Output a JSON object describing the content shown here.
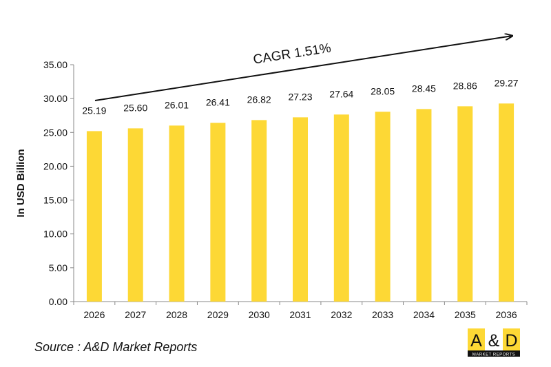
{
  "chart_data": {
    "type": "bar",
    "title": "",
    "xlabel": "",
    "ylabel": "In USD Billion",
    "categories": [
      "2026",
      "2027",
      "2028",
      "2029",
      "2030",
      "2031",
      "2032",
      "2033",
      "2034",
      "2035",
      "2036"
    ],
    "values": [
      25.19,
      25.6,
      26.01,
      26.41,
      26.82,
      27.23,
      27.64,
      28.05,
      28.45,
      28.86,
      29.27
    ],
    "data_labels": [
      "25.19",
      "25.60",
      "26.01",
      "26.41",
      "26.82",
      "27.23",
      "27.64",
      "28.05",
      "28.45",
      "28.86",
      "29.27"
    ],
    "ylim": [
      0,
      35
    ],
    "yticks": [
      "0.00",
      "5.00",
      "10.00",
      "15.00",
      "20.00",
      "25.00",
      "30.00",
      "35.00"
    ],
    "grid": false,
    "bar_color": "#FDD835",
    "annotation": "CAGR 1.51%"
  },
  "source": "Source : A&D Market Reports",
  "logo": {
    "text": "A&D",
    "subtext": "MARKET REPORTS"
  }
}
